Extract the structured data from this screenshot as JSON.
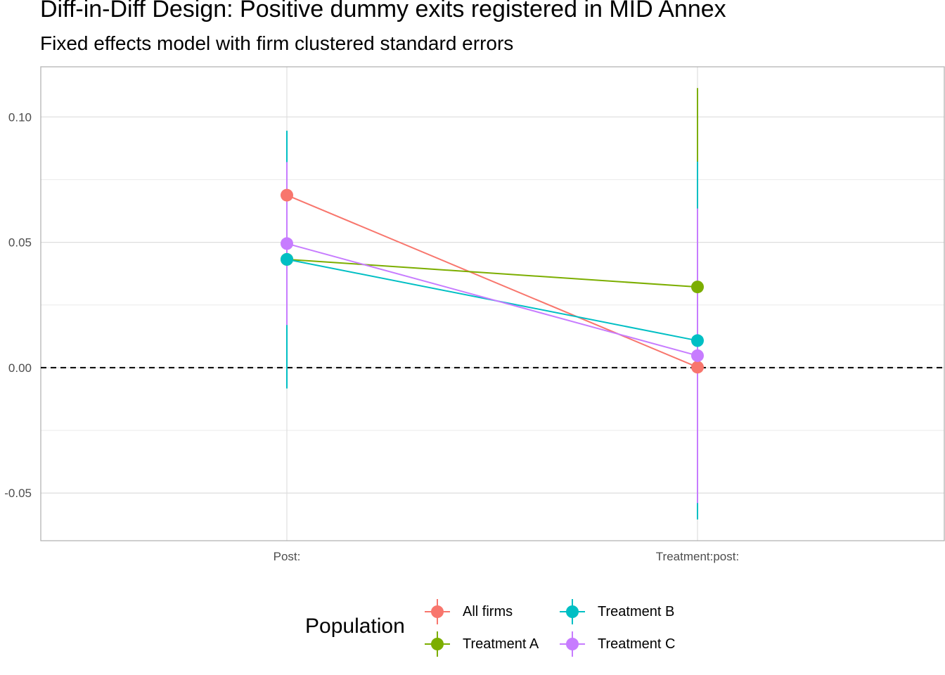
{
  "chart_data": {
    "type": "scatter",
    "title": "Diff-in-Diff Design: Positive dummy exits registered in MID Annex",
    "subtitle": "Fixed effects model with firm clustered standard errors",
    "xlabel": "",
    "ylabel": "",
    "categories": [
      "Post:",
      "Treatment:post:"
    ],
    "y_ticks": [
      -0.05,
      0.0,
      0.05,
      0.1
    ],
    "y_tick_labels": [
      "-0.05",
      "0.00",
      "0.05",
      "0.10"
    ],
    "ylim": [
      -0.069,
      0.12
    ],
    "grid": true,
    "reference_line": {
      "y": 0,
      "style": "dashed"
    },
    "legend": {
      "title": "Population",
      "position": "bottom"
    },
    "series": [
      {
        "name": "All firms",
        "color": "#F8766D",
        "values": [
          0.0688,
          0.0002
        ],
        "ci_low": [
          0.056,
          -0.014
        ],
        "ci_high": [
          0.082,
          0.016
        ]
      },
      {
        "name": "Treatment A",
        "color": "#7CAE00",
        "values": [
          0.0432,
          0.0322
        ],
        "ci_low": [
          0.02,
          -0.048
        ],
        "ci_high": [
          0.066,
          0.1115
        ]
      },
      {
        "name": "Treatment B",
        "color": "#00BFC4",
        "values": [
          0.0432,
          0.0108
        ],
        "ci_low": [
          -0.0083,
          -0.0605
        ],
        "ci_high": [
          0.0945,
          0.0822
        ]
      },
      {
        "name": "Treatment C",
        "color": "#C77CFF",
        "values": [
          0.0495,
          0.0048
        ],
        "ci_low": [
          0.017,
          -0.054
        ],
        "ci_high": [
          0.082,
          0.0635
        ]
      }
    ]
  }
}
